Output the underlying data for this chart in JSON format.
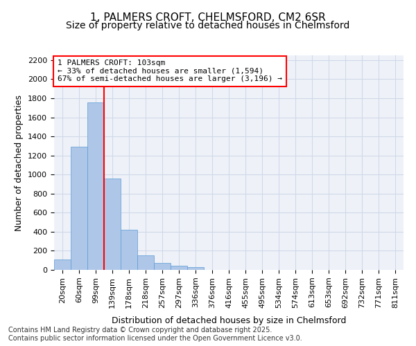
{
  "title_line1": "1, PALMERS CROFT, CHELMSFORD, CM2 6SR",
  "title_line2": "Size of property relative to detached houses in Chelmsford",
  "xlabel": "Distribution of detached houses by size in Chelmsford",
  "ylabel": "Number of detached properties",
  "categories": [
    "20sqm",
    "60sqm",
    "99sqm",
    "139sqm",
    "178sqm",
    "218sqm",
    "257sqm",
    "297sqm",
    "336sqm",
    "376sqm",
    "416sqm",
    "455sqm",
    "495sqm",
    "534sqm",
    "574sqm",
    "613sqm",
    "653sqm",
    "692sqm",
    "732sqm",
    "771sqm",
    "811sqm"
  ],
  "values": [
    108,
    1290,
    1760,
    960,
    420,
    150,
    75,
    42,
    28,
    0,
    0,
    0,
    0,
    0,
    0,
    0,
    0,
    0,
    0,
    0,
    0
  ],
  "bar_color": "#aec6e8",
  "bar_edge_color": "#5b9bd5",
  "grid_color": "#d0d8e8",
  "background_color": "#eef2f8",
  "vline_color": "red",
  "vline_x_index": 2,
  "annotation_text": "1 PALMERS CROFT: 103sqm\n← 33% of detached houses are smaller (1,594)\n67% of semi-detached houses are larger (3,196) →",
  "annotation_box_color": "red",
  "ylim": [
    0,
    2250
  ],
  "yticks": [
    0,
    200,
    400,
    600,
    800,
    1000,
    1200,
    1400,
    1600,
    1800,
    2000,
    2200
  ],
  "footnote": "Contains HM Land Registry data © Crown copyright and database right 2025.\nContains public sector information licensed under the Open Government Licence v3.0.",
  "title_fontsize": 11,
  "subtitle_fontsize": 10,
  "axis_label_fontsize": 9,
  "tick_fontsize": 8,
  "annotation_fontsize": 8,
  "footnote_fontsize": 7
}
